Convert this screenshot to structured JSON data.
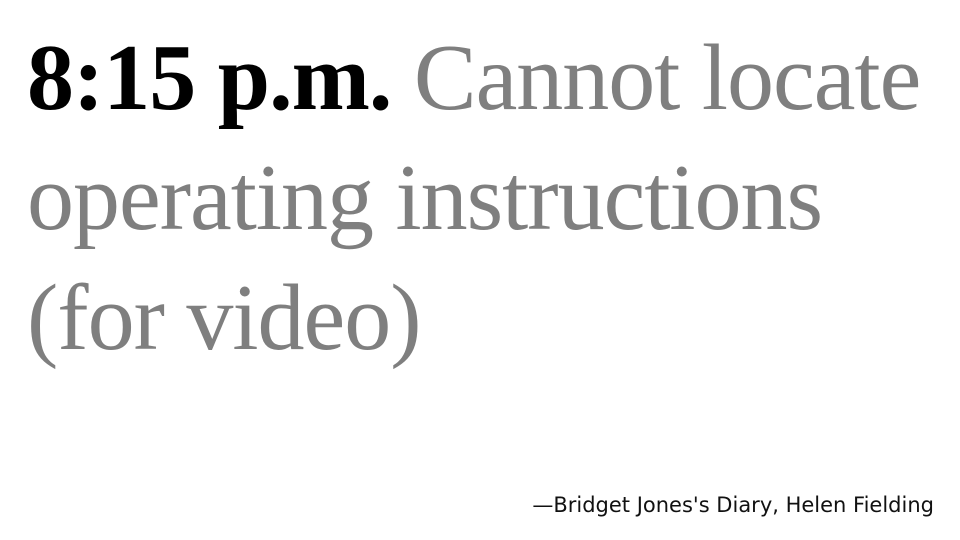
{
  "quote": {
    "time": "8:15 p.m.",
    "text": "Cannot locate operating instructions (for video)"
  },
  "attribution": {
    "text": "—Bridget Jones's Diary, Helen Fielding"
  },
  "colors": {
    "time": "#000000",
    "quote_text": "#7f7f7f",
    "attribution": "#111111",
    "background": "#ffffff"
  }
}
